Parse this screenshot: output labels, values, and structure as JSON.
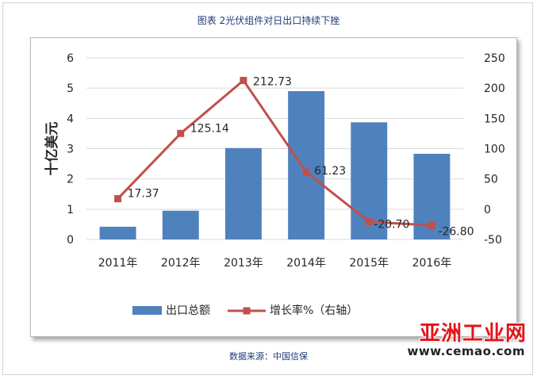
{
  "page": {
    "title": "图表 2光伏组件对日出口持续下挫",
    "source": "数据来源：中国信保"
  },
  "watermark": {
    "logo_text": "亚洲工业网",
    "url_text": "www.cemao.com"
  },
  "colors": {
    "bar": "#4f81bd",
    "line": "#c0504d",
    "grid": "#d9d9d9",
    "text": "#262626",
    "title": "#1f3a7a",
    "watermark_red": "#e3141b"
  },
  "chart_data": {
    "type": "bar",
    "categories": [
      "2011年",
      "2012年",
      "2013年",
      "2014年",
      "2015年",
      "2016年"
    ],
    "series": [
      {
        "name": "出口总额",
        "type": "bar",
        "axis": "left",
        "values": [
          0.42,
          0.95,
          3.02,
          4.9,
          3.87,
          2.83
        ]
      },
      {
        "name": "增长率%（右轴）",
        "type": "line",
        "axis": "right",
        "values": [
          17.37,
          125.14,
          212.73,
          61.23,
          -20.7,
          -26.8
        ],
        "labels": [
          "17.37",
          "125.14",
          "212.73",
          "61.23",
          "-20.70",
          "-26.80"
        ]
      }
    ],
    "ylabel": "十亿美元",
    "ylim": [
      0,
      6
    ],
    "yticks": [
      0,
      1,
      2,
      3,
      4,
      5,
      6
    ],
    "y2lim": [
      -50,
      250
    ],
    "y2ticks": [
      -50,
      0,
      50,
      100,
      150,
      200,
      250
    ],
    "grid": true,
    "legend_position": "bottom"
  }
}
